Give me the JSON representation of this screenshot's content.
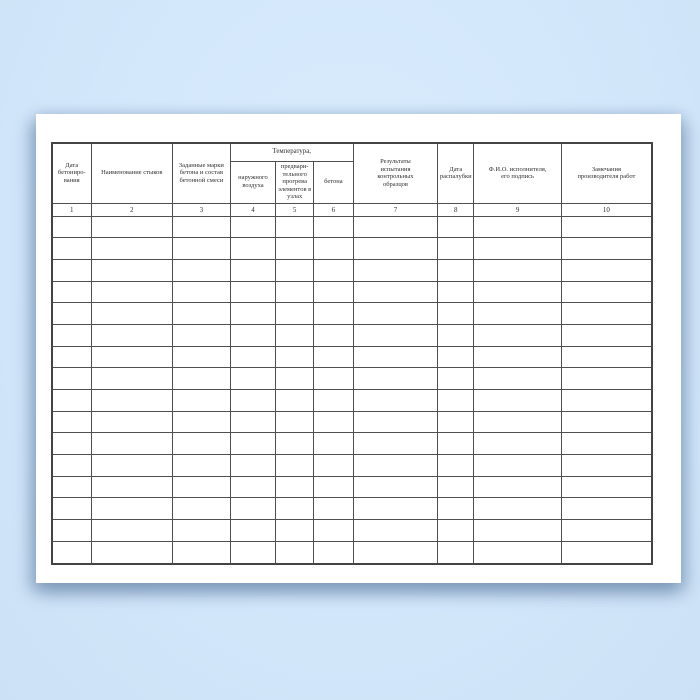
{
  "background": {
    "color": "#d3e7fb"
  },
  "paper": {
    "color": "#ffffff"
  },
  "table": {
    "line_color": "#4f4f4f",
    "text_color": "#2e2e2e",
    "temperature_group": {
      "label": "Температура,"
    },
    "headers": {
      "col1": "Дата\nбетониро-\nвания",
      "col2": "Наименование стыков",
      "col3": "Заданные марки\nбетона и состав\nбетонной смеси",
      "col4": "наружного\nвоздуха",
      "col5": "предвари-\nтельного\nпрогрева\nэлементов в\nузлах",
      "col6": "бетона",
      "col7": "Результаты\nиспытания\nконтрольных\nобразцов",
      "col8": "Дата\nраспалубки",
      "col9": "Ф.И.О. исполнителя,\nего подпись",
      "col10": "Замечания\nпроизводителя работ"
    },
    "column_numbers": {
      "n1": "1",
      "n2": "2",
      "n3": "3",
      "n4": "4",
      "n5": "5",
      "n6": "6",
      "n7": "7",
      "n8": "8",
      "n9": "9",
      "n10": "10"
    },
    "empty_rows": 16,
    "columns_count": 10
  }
}
